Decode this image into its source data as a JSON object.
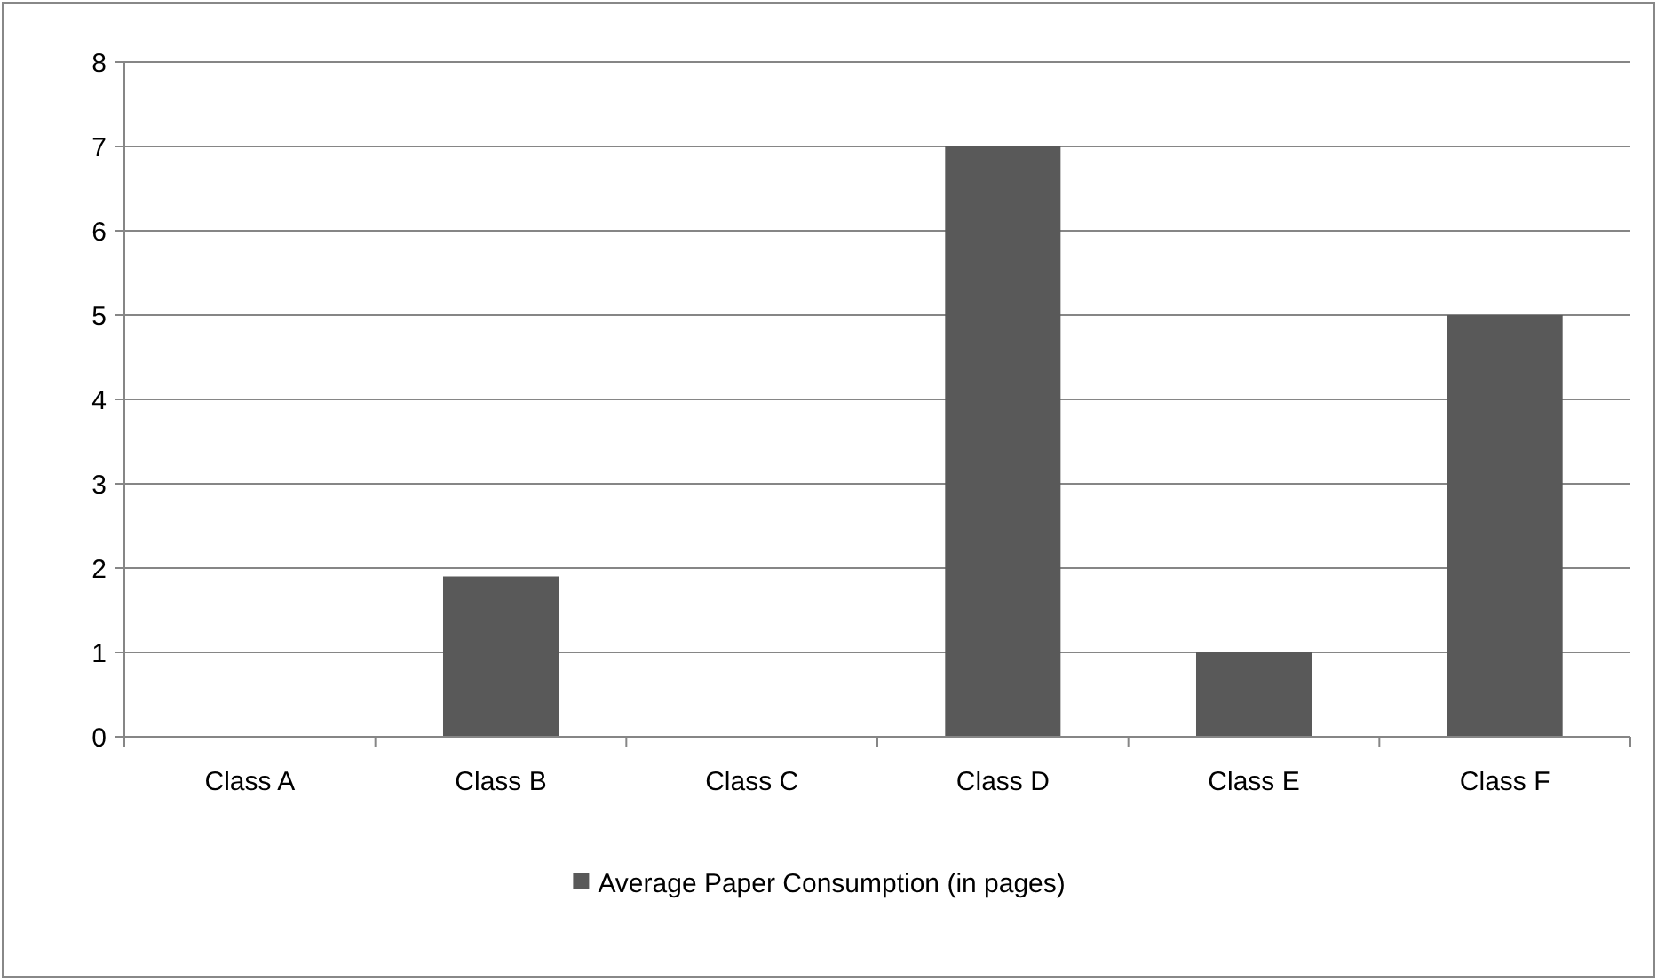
{
  "chart_data": {
    "type": "bar",
    "categories": [
      "Class A",
      "Class B",
      "Class C",
      "Class D",
      "Class E",
      "Class F"
    ],
    "series": [
      {
        "name": "Average Paper Consumption (in pages)",
        "color": "#595959",
        "values": [
          0,
          1.9,
          0,
          7,
          1,
          5
        ]
      }
    ],
    "ylim": [
      0,
      8
    ],
    "yticks": [
      0,
      1,
      2,
      3,
      4,
      5,
      6,
      7,
      8
    ],
    "grid": "y",
    "legend": "bottom"
  }
}
